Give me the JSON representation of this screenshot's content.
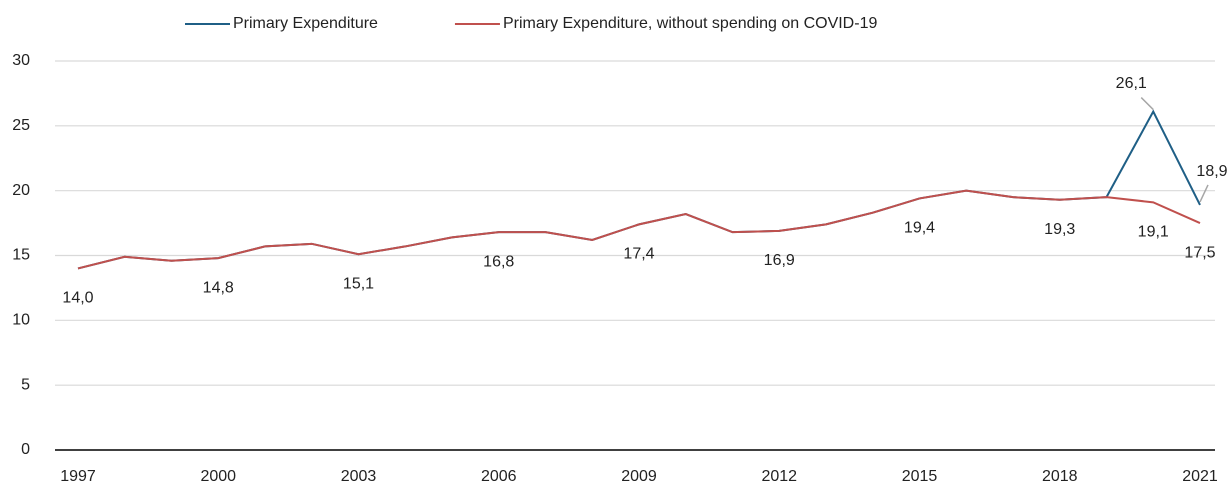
{
  "chart_data": {
    "type": "line",
    "x": [
      1997,
      1998,
      1999,
      2000,
      2001,
      2002,
      2003,
      2004,
      2005,
      2006,
      2007,
      2008,
      2009,
      2010,
      2011,
      2012,
      2013,
      2014,
      2015,
      2016,
      2017,
      2018,
      2019,
      2020,
      2021
    ],
    "series": [
      {
        "name": "Primary Expenditure",
        "color": "#1f5f86",
        "values": [
          14.0,
          14.9,
          14.6,
          14.8,
          15.7,
          15.9,
          15.1,
          15.7,
          16.4,
          16.8,
          16.8,
          16.2,
          17.4,
          18.2,
          16.8,
          16.9,
          17.4,
          18.3,
          19.4,
          20.0,
          19.5,
          19.3,
          19.5,
          26.1,
          18.9
        ],
        "value_labels": [
          null,
          null,
          null,
          null,
          null,
          null,
          null,
          null,
          null,
          null,
          null,
          null,
          null,
          null,
          null,
          null,
          null,
          null,
          null,
          null,
          null,
          null,
          null,
          "26,1",
          "18,9"
        ]
      },
      {
        "name": "Primary Expenditure, without spending on COVID-19",
        "color": "#c0504d",
        "values": [
          14.0,
          14.9,
          14.6,
          14.8,
          15.7,
          15.9,
          15.1,
          15.7,
          16.4,
          16.8,
          16.8,
          16.2,
          17.4,
          18.2,
          16.8,
          16.9,
          17.4,
          18.3,
          19.4,
          20.0,
          19.5,
          19.3,
          19.5,
          19.1,
          17.5
        ],
        "value_labels": [
          "14,0",
          null,
          null,
          "14,8",
          null,
          null,
          "15,1",
          null,
          null,
          "16,8",
          null,
          null,
          "17,4",
          null,
          null,
          "16,9",
          null,
          null,
          "19,4",
          null,
          null,
          "19,3",
          null,
          "19,1",
          "17,5"
        ]
      }
    ],
    "xlim": [
      1997,
      2021
    ],
    "xticks": [
      1997,
      2000,
      2003,
      2006,
      2009,
      2012,
      2015,
      2018,
      2021
    ],
    "ylim": [
      0,
      30
    ],
    "yticks": [
      0,
      5,
      10,
      15,
      20,
      25,
      30
    ],
    "grid": true,
    "legend": "top"
  }
}
